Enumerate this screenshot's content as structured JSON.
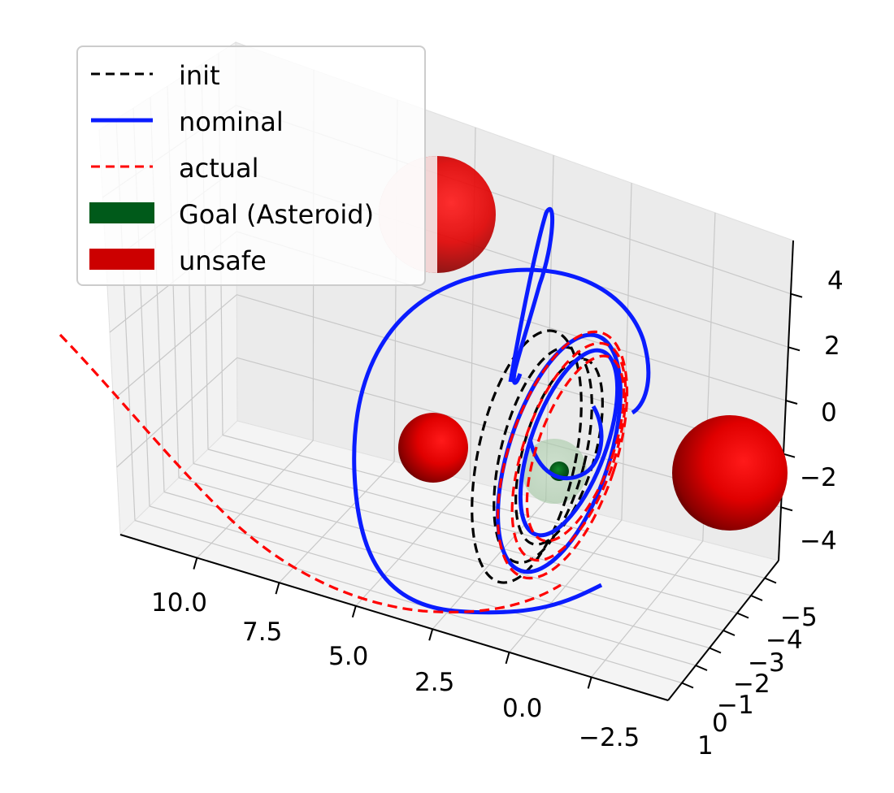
{
  "chart_data": {
    "type": "line3d",
    "title": "",
    "xlabel": "",
    "ylabel": "",
    "zlabel": "",
    "x_ticks": [
      "10.0",
      "7.5",
      "5.0",
      "2.5",
      "0.0",
      "−2.5"
    ],
    "y_ticks": [
      "−5",
      "−4",
      "−3",
      "−2",
      "−1",
      "0",
      "1"
    ],
    "z_ticks": [
      "4",
      "2",
      "0",
      "−2",
      "−4"
    ],
    "grid": true,
    "legend_position": "upper-left",
    "series": [
      {
        "name": "init",
        "style": "dashed",
        "color": "#000000"
      },
      {
        "name": "nominal",
        "style": "solid",
        "color": "#0a1cff"
      },
      {
        "name": "actual",
        "style": "dashed",
        "color": "#ff0000"
      }
    ],
    "patches": [
      {
        "name": "Goal (Asteroid)",
        "color": "#005a1a"
      },
      {
        "name": "unsafe",
        "color": "#cc0000"
      }
    ]
  }
}
